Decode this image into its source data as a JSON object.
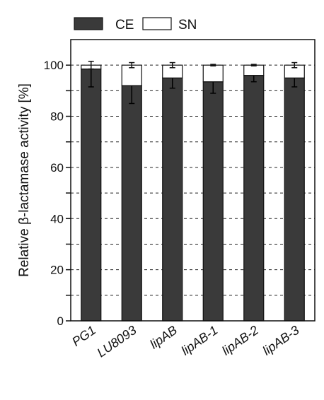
{
  "chart_data": {
    "type": "stacked-bar",
    "y_label": "Relative β-lactamase activity [%]",
    "categories": [
      "PG1",
      "LU8093",
      "lipAB",
      "lipAB-1",
      "lipAB-2",
      "lipAB-3"
    ],
    "series": [
      {
        "name": "CE",
        "color": "#3a3a3a",
        "values": [
          98.5,
          92,
          95,
          93.5,
          96,
          95
        ],
        "errors": [
          7,
          7,
          4,
          4.5,
          2.5,
          3.5
        ]
      },
      {
        "name": "SN",
        "color": "#ffffff",
        "values": [
          1.5,
          8,
          5,
          6.5,
          4,
          5
        ],
        "errors": [
          1.5,
          1,
          1,
          0.3,
          0.3,
          1
        ]
      }
    ],
    "ylim": [
      0,
      110
    ],
    "yticks": [
      0,
      20,
      40,
      60,
      80,
      100
    ],
    "yminor": [
      10,
      30,
      50,
      70,
      90
    ],
    "grid": true
  }
}
